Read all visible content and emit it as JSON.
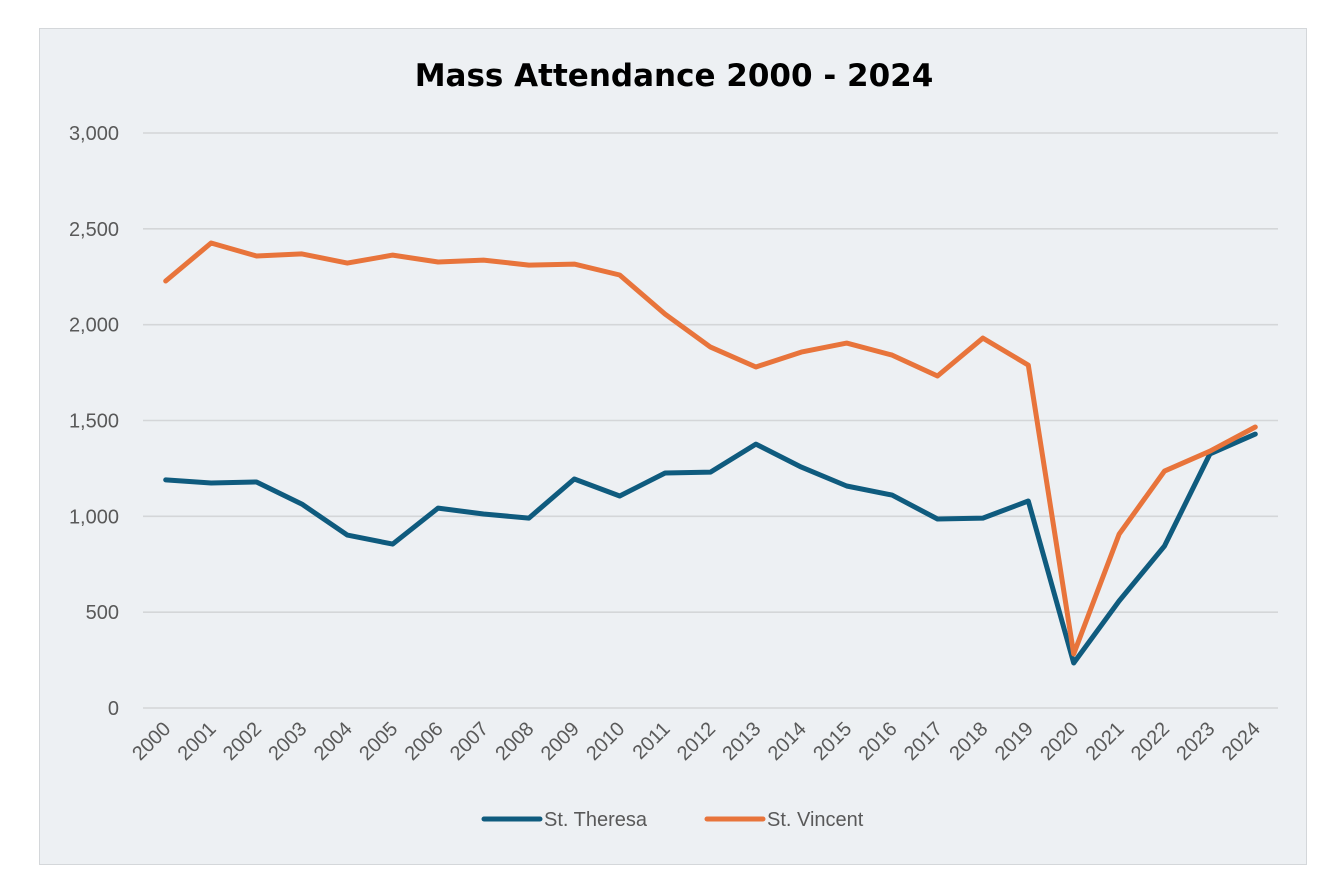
{
  "chart_data": {
    "type": "line",
    "title": "Mass Attendance 2000 - 2024",
    "xlabel": "",
    "ylabel": "",
    "ylim": [
      0,
      3000
    ],
    "yticks": [
      0,
      500,
      1000,
      1500,
      2000,
      2500,
      3000
    ],
    "ytick_labels": [
      "0",
      "500",
      "1,000",
      "1,500",
      "2,000",
      "2,500",
      "3,000"
    ],
    "grid": true,
    "legend_position": "bottom",
    "x": [
      "2000",
      "2001",
      "2002",
      "2003",
      "2004",
      "2005",
      "2006",
      "2007",
      "2008",
      "2009",
      "2010",
      "2011",
      "2012",
      "2013",
      "2014",
      "2015",
      "2016",
      "2017",
      "2018",
      "2019",
      "2020",
      "2021",
      "2022",
      "2023",
      "2024"
    ],
    "series": [
      {
        "name": "St. Theresa",
        "color": "#0f5b7e",
        "values": [
          1190,
          1174,
          1179,
          1064,
          902,
          855,
          1043,
          1012,
          991,
          1195,
          1106,
          1226,
          1231,
          1377,
          1257,
          1158,
          1111,
          986,
          991,
          1080,
          235,
          558,
          845,
          1325,
          1429
        ]
      },
      {
        "name": "St. Vincent",
        "color": "#e8743b",
        "values": [
          2228,
          2426,
          2358,
          2369,
          2321,
          2363,
          2327,
          2337,
          2311,
          2316,
          2259,
          2055,
          1883,
          1779,
          1857,
          1904,
          1841,
          1732,
          1930,
          1789,
          282,
          907,
          1236,
          1340,
          1466
        ]
      }
    ]
  }
}
